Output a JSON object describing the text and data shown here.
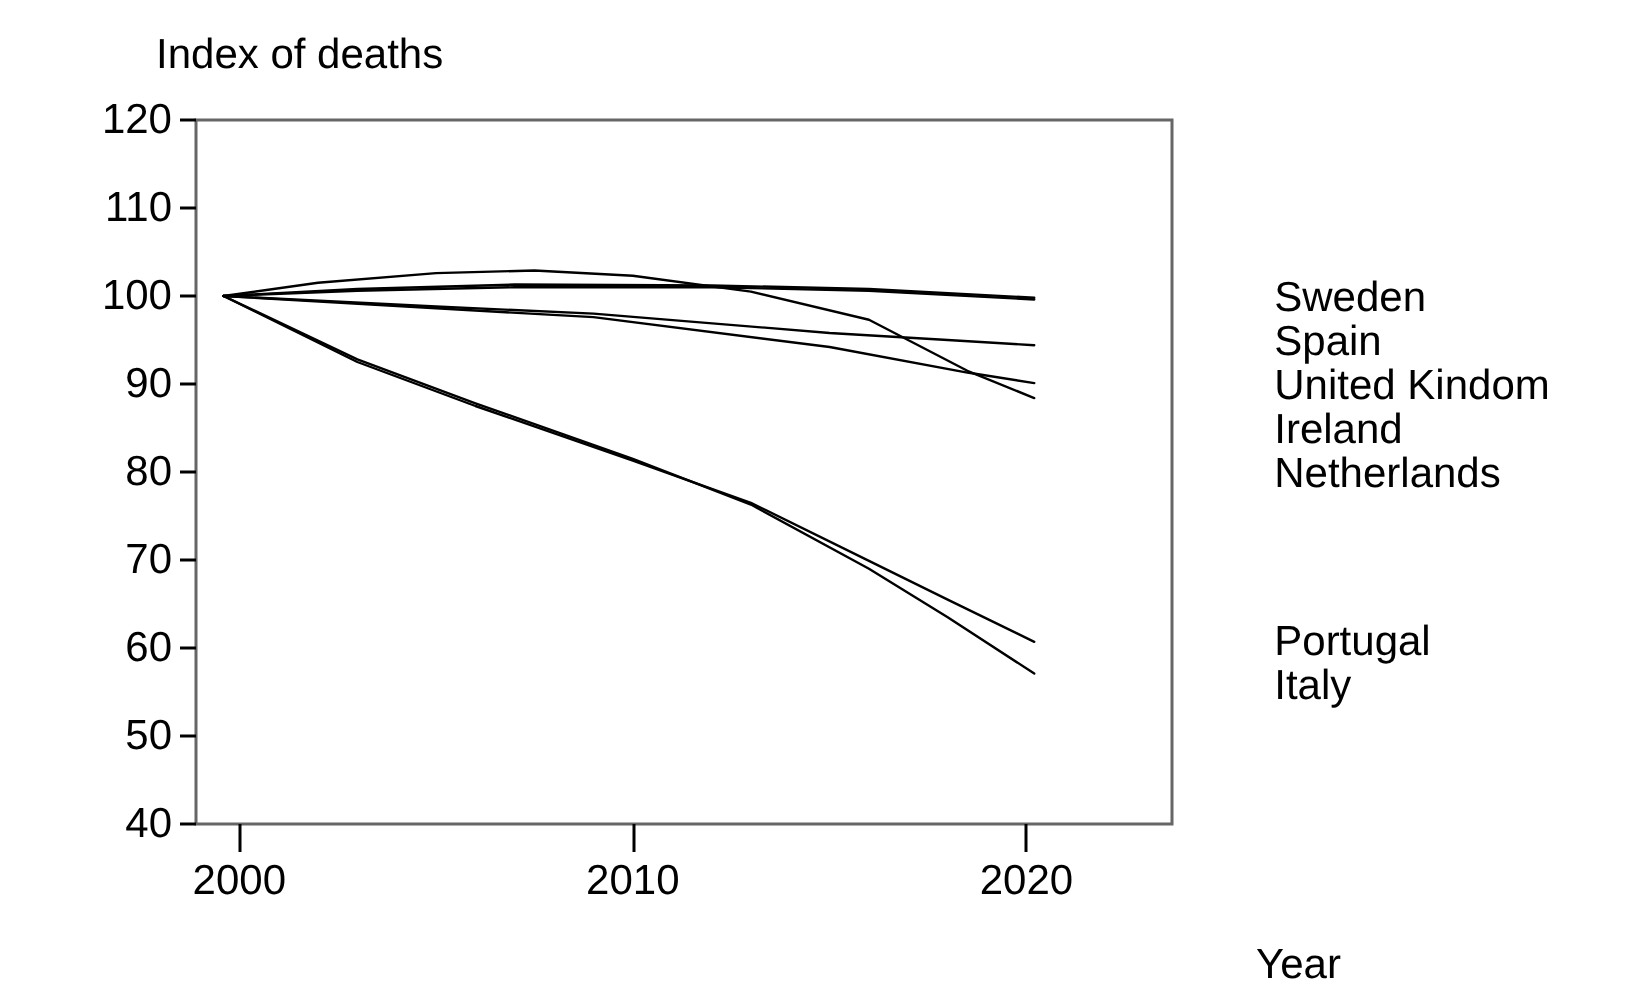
{
  "chart_data": {
    "type": "line",
    "xlabel": "Year",
    "ylabel": "Index of deaths",
    "xlim": [
      1998.9,
      2023.7
    ],
    "xticks": [
      2000,
      2010,
      2020
    ],
    "ylim": [
      40,
      120
    ],
    "yticks": [
      40,
      50,
      60,
      70,
      80,
      90,
      100,
      110,
      120
    ],
    "grid": false,
    "legend": false,
    "marker": "none",
    "line_style": "solid",
    "series": [
      {
        "name": "Sweden",
        "color": "#000000",
        "x": [
          1999.6,
          2003,
          2007,
          2012,
          2016,
          2020.2
        ],
        "values": [
          100,
          100.8,
          101.3,
          101.2,
          100.8,
          99.8
        ]
      },
      {
        "name": "Spain",
        "color": "#000000",
        "x": [
          1999.6,
          2003,
          2007,
          2012,
          2016,
          2020.2
        ],
        "values": [
          100,
          100.6,
          101.0,
          101.0,
          100.6,
          99.6
        ]
      },
      {
        "name": "United Kindom",
        "color": "#000000",
        "x": [
          1999.6,
          2005,
          2009,
          2015,
          2018,
          2020.2
        ],
        "values": [
          100,
          98.8,
          98.0,
          95.8,
          95.0,
          94.4
        ]
      },
      {
        "name": "Ireland",
        "color": "#000000",
        "x": [
          1999.6,
          2005,
          2009,
          2015,
          2018.5,
          2020.2
        ],
        "values": [
          100,
          98.6,
          97.6,
          94.2,
          91.3,
          90.1
        ]
      },
      {
        "name": "Netherlands",
        "color": "#000000",
        "x": [
          1999.6,
          2002,
          2005,
          2007.5,
          2010,
          2013,
          2016,
          2018.5,
          2020.2
        ],
        "values": [
          100,
          101.5,
          102.6,
          102.9,
          102.3,
          100.5,
          97.3,
          91.5,
          88.4
        ]
      },
      {
        "name": "Portugal",
        "color": "#000000",
        "x": [
          1999.6,
          2003,
          2006,
          2010,
          2013,
          2016,
          2018,
          2020.2
        ],
        "values": [
          100,
          92.5,
          87.5,
          81.3,
          76.5,
          69.9,
          65.5,
          60.7
        ]
      },
      {
        "name": "Italy",
        "color": "#000000",
        "x": [
          1999.6,
          2003,
          2006,
          2010,
          2013,
          2016,
          2018,
          2020.2
        ],
        "values": [
          100,
          92.8,
          87.8,
          81.5,
          76.3,
          69.0,
          63.5,
          57.1
        ]
      }
    ]
  }
}
